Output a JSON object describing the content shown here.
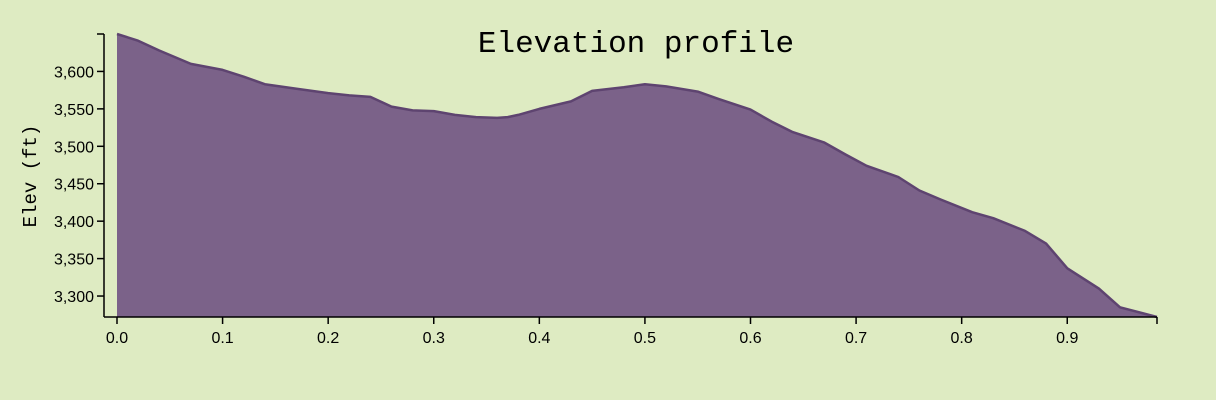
{
  "chart_data": {
    "type": "area",
    "title": "Elevation profile",
    "xlabel": "",
    "ylabel": "Elev (ft)",
    "xlim": [
      0,
      0.985
    ],
    "ylim": [
      3272,
      3650
    ],
    "grid": false,
    "x_ticks": [
      0.0,
      0.1,
      0.2,
      0.3,
      0.4,
      0.5,
      0.6,
      0.7,
      0.8,
      0.9
    ],
    "x_tick_labels": [
      "0.0",
      "0.1",
      "0.2",
      "0.3",
      "0.4",
      "0.5",
      "0.6",
      "0.7",
      "0.8",
      "0.9"
    ],
    "y_ticks": [
      3300,
      3350,
      3400,
      3450,
      3500,
      3550,
      3600
    ],
    "y_tick_labels": [
      "3,300",
      "3,350",
      "3,400",
      "3,450",
      "3,500",
      "3,550",
      "3,600"
    ],
    "colors": {
      "fill": "#7b6289",
      "line": "#5e4470",
      "background": "#deebc2"
    },
    "x": [
      0.0,
      0.02,
      0.04,
      0.07,
      0.1,
      0.12,
      0.14,
      0.17,
      0.2,
      0.22,
      0.24,
      0.26,
      0.28,
      0.3,
      0.32,
      0.34,
      0.36,
      0.37,
      0.38,
      0.4,
      0.43,
      0.45,
      0.48,
      0.5,
      0.52,
      0.55,
      0.57,
      0.6,
      0.62,
      0.64,
      0.67,
      0.69,
      0.71,
      0.74,
      0.76,
      0.78,
      0.81,
      0.83,
      0.86,
      0.88,
      0.9,
      0.93,
      0.95,
      0.985
    ],
    "y": [
      3650,
      3641,
      3628,
      3610,
      3602,
      3593,
      3583,
      3577,
      3571,
      3568,
      3566,
      3553,
      3548,
      3547,
      3542,
      3539,
      3538,
      3539,
      3542,
      3550,
      3560,
      3574,
      3579,
      3583,
      3580,
      3573,
      3563,
      3549,
      3533,
      3519,
      3505,
      3489,
      3474,
      3459,
      3441,
      3429,
      3412,
      3404,
      3387,
      3370,
      3337,
      3310,
      3285,
      3272
    ]
  }
}
